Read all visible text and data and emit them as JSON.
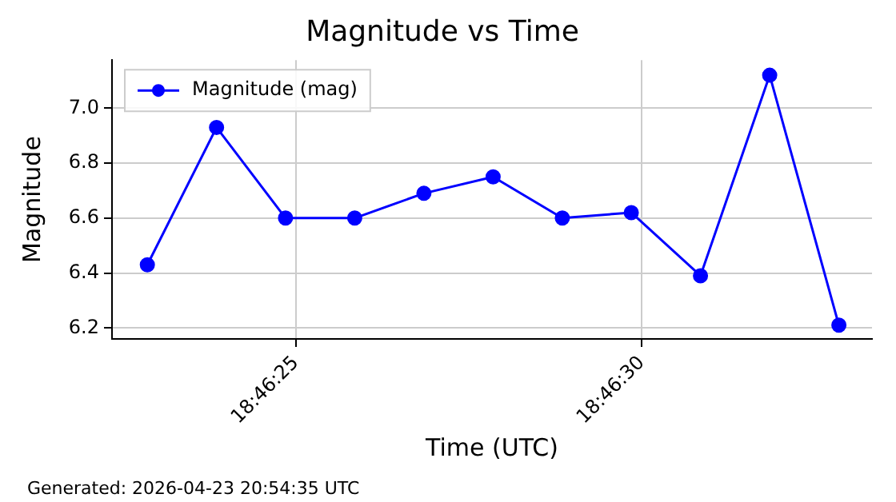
{
  "chart_data": {
    "type": "line",
    "title": "Magnitude vs Time",
    "xlabel": "Time (UTC)",
    "ylabel": "Magnitude",
    "x": [
      18.773014,
      18.773292,
      18.773569,
      18.773847,
      18.774125,
      18.774403,
      18.774681,
      18.774958,
      18.775236,
      18.775514,
      18.775792
    ],
    "series": [
      {
        "name": "Magnitude (mag)",
        "color": "#0000ff",
        "values": [
          6.43,
          6.93,
          6.6,
          6.6,
          6.69,
          6.75,
          6.6,
          6.62,
          6.39,
          7.12,
          6.21
        ]
      }
    ],
    "xlim": [
      18.772872,
      18.775925
    ],
    "ylim": [
      6.16,
      7.175
    ],
    "xticks": [
      {
        "value": 18.773611,
        "label": "18:46:25"
      },
      {
        "value": 18.775,
        "label": "18:46:30"
      }
    ],
    "yticks": [
      {
        "value": 6.2,
        "label": "6.2"
      },
      {
        "value": 6.4,
        "label": "6.4"
      },
      {
        "value": 6.6,
        "label": "6.6"
      },
      {
        "value": 6.8,
        "label": "6.8"
      },
      {
        "value": 7.0,
        "label": "7.0"
      }
    ],
    "grid": true,
    "legend": "top left",
    "marker": "circle",
    "line_style": "solid",
    "annotations": [
      "Generated: 2026-04-23 20:54:35 UTC"
    ]
  }
}
